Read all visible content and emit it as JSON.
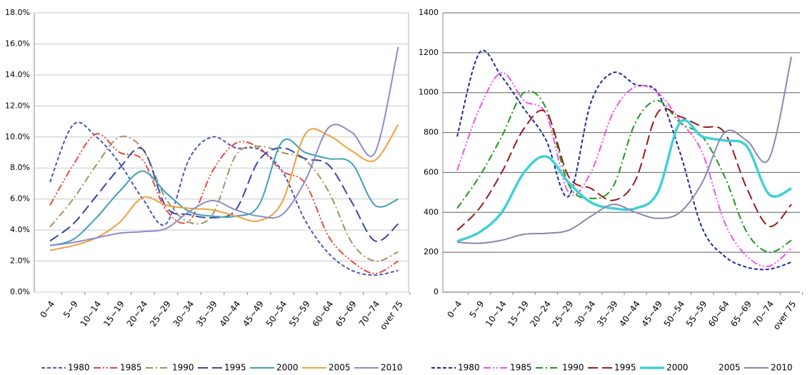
{
  "chart_data": [
    {
      "type": "line",
      "categories": [
        "0~4",
        "5~9",
        "10~14",
        "15~19",
        "20~24",
        "25~29",
        "30~34",
        "35~39",
        "40~44",
        "45~49",
        "50~54",
        "55~59",
        "60~64",
        "65~69",
        "70~74",
        "over 75"
      ],
      "ylim": [
        0,
        18
      ],
      "yticks": [
        {
          "value": 0,
          "label": "0.0%"
        },
        {
          "value": 2,
          "label": "2.0%"
        },
        {
          "value": 4,
          "label": "4.0%"
        },
        {
          "value": 6,
          "label": "6.0%"
        },
        {
          "value": 8,
          "label": "8.0%"
        },
        {
          "value": 10,
          "label": "10.0%"
        },
        {
          "value": 12,
          "label": "12.0%"
        },
        {
          "value": 14,
          "label": "14.0%"
        },
        {
          "value": 16,
          "label": "16.0%"
        },
        {
          "value": 18,
          "label": "18.0%"
        }
      ],
      "grid": true,
      "series": [
        {
          "name": "1980",
          "color": "#4a55b8",
          "style": "dashed",
          "values": [
            7.1,
            10.8,
            10.0,
            8.3,
            6.0,
            4.4,
            8.6,
            10.0,
            9.3,
            9.2,
            7.8,
            4.6,
            2.5,
            1.4,
            1.1,
            1.4
          ]
        },
        {
          "name": "1985",
          "color": "#e8483f",
          "style": "dash-dot-dot",
          "values": [
            5.6,
            8.2,
            10.2,
            9.0,
            8.5,
            5.3,
            4.6,
            7.8,
            9.6,
            9.3,
            7.8,
            7.0,
            3.6,
            2.0,
            1.2,
            2.0
          ]
        },
        {
          "name": "1990",
          "color": "#a89060",
          "style": "dash-dot",
          "values": [
            4.2,
            6.0,
            8.2,
            10.0,
            9.2,
            6.0,
            4.5,
            5.0,
            8.8,
            9.4,
            9.0,
            8.5,
            6.5,
            3.2,
            2.0,
            2.6
          ]
        },
        {
          "name": "1995",
          "color": "#3a46a8",
          "style": "long-dash",
          "values": [
            3.3,
            4.4,
            6.2,
            8.0,
            9.2,
            5.5,
            5.0,
            4.8,
            5.3,
            8.5,
            9.3,
            8.6,
            8.2,
            5.8,
            3.3,
            4.4
          ]
        },
        {
          "name": "2000",
          "color": "#3ea0b8",
          "style": "solid",
          "values": [
            3.0,
            3.4,
            4.8,
            6.5,
            7.8,
            6.4,
            5.2,
            4.9,
            4.9,
            5.6,
            9.7,
            9.0,
            8.6,
            8.3,
            5.6,
            6.0
          ]
        },
        {
          "name": "2005",
          "color": "#f0a040",
          "style": "solid",
          "values": [
            2.7,
            3.0,
            3.5,
            4.5,
            6.1,
            5.6,
            5.4,
            5.3,
            4.9,
            4.6,
            5.8,
            10.2,
            10.1,
            9.1,
            8.5,
            10.8
          ]
        },
        {
          "name": "2010",
          "color": "#8c8cc8",
          "style": "solid",
          "values": [
            3.0,
            3.2,
            3.5,
            3.8,
            3.9,
            4.1,
            5.2,
            5.9,
            5.3,
            4.9,
            5.0,
            7.2,
            10.6,
            10.3,
            9.0,
            15.8
          ]
        }
      ]
    },
    {
      "type": "line",
      "categories": [
        "0~4",
        "5~9",
        "10~14",
        "15~19",
        "20~24",
        "25~29",
        "30~34",
        "35~39",
        "40~44",
        "45~49",
        "50~54",
        "55~59",
        "60~64",
        "65~69",
        "70~74",
        "over 75"
      ],
      "ylim": [
        0,
        1400
      ],
      "yticks": [
        0,
        200,
        400,
        600,
        800,
        1000,
        1200,
        1400
      ],
      "grid": true,
      "series": [
        {
          "name": "1980",
          "color": "#1c2a96",
          "style": "dashed",
          "values": [
            780,
            1200,
            1080,
            920,
            760,
            480,
            950,
            1100,
            1040,
            1000,
            700,
            320,
            180,
            125,
            115,
            150
          ]
        },
        {
          "name": "1985",
          "color": "#f050f0",
          "style": "dash-dot-dot",
          "values": [
            610,
            920,
            1100,
            960,
            890,
            500,
            600,
            900,
            1030,
            1000,
            860,
            700,
            350,
            180,
            130,
            220
          ]
        },
        {
          "name": "1990",
          "color": "#1a9a1a",
          "style": "dash-dot",
          "values": [
            420,
            580,
            780,
            1000,
            920,
            540,
            470,
            530,
            850,
            960,
            850,
            780,
            580,
            300,
            200,
            260
          ]
        },
        {
          "name": "1995",
          "color": "#9a1a1a",
          "style": "long-dash",
          "values": [
            310,
            420,
            600,
            820,
            900,
            580,
            520,
            460,
            560,
            900,
            880,
            830,
            800,
            520,
            330,
            440
          ]
        },
        {
          "name": "2000",
          "color": "#40d0d8",
          "style": "thick",
          "values": [
            255,
            300,
            400,
            600,
            680,
            550,
            450,
            420,
            420,
            500,
            850,
            780,
            760,
            730,
            490,
            520
          ]
        },
        {
          "name": "2005",
          "color": "#ffffff",
          "style": "solid",
          "values": [
            null,
            null,
            null,
            null,
            null,
            null,
            null,
            null,
            null,
            null,
            null,
            null,
            null,
            null,
            null,
            null
          ]
        },
        {
          "name": "2010",
          "color": "#8888b0",
          "style": "solid",
          "values": [
            250,
            245,
            260,
            290,
            295,
            310,
            380,
            440,
            400,
            370,
            400,
            550,
            800,
            760,
            670,
            1180
          ]
        }
      ]
    }
  ]
}
